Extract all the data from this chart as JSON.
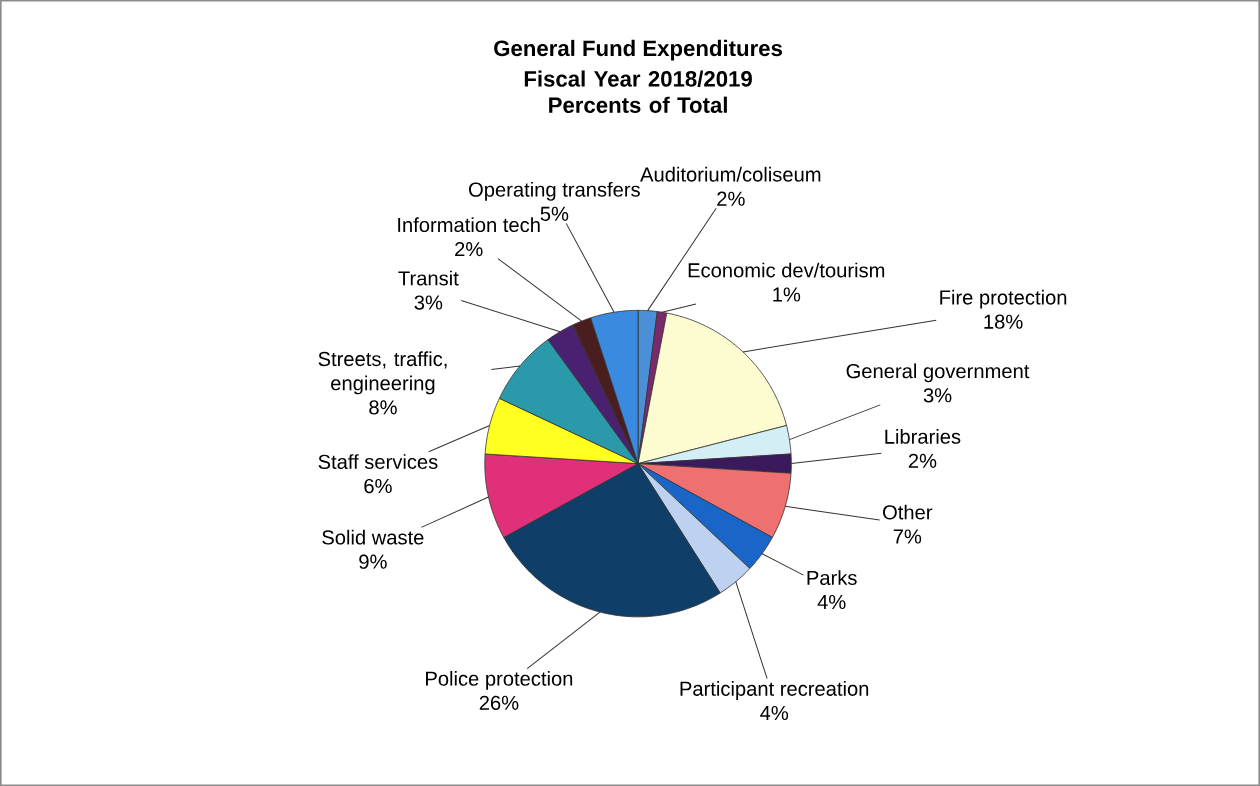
{
  "chart_data": {
    "type": "pie",
    "title": "General Fund Expenditures",
    "subtitle": "Fiscal Year 2018/2019 Percents of Total",
    "categories": [
      "Auditorium/coliseum",
      "Economic dev/tourism",
      "Fire protection",
      "General government",
      "Libraries",
      "Other",
      "Parks",
      "Participant recreation",
      "Police protection",
      "Solid waste",
      "Staff services",
      "Streets, traffic, engineering",
      "Transit",
      "Information tech",
      "Operating transfers"
    ],
    "values": [
      2,
      1,
      18,
      3,
      2,
      7,
      4,
      4,
      26,
      9,
      6,
      8,
      3,
      2,
      5
    ],
    "value_labels": [
      "2%",
      "1%",
      "18%",
      "3%",
      "2%",
      "7%",
      "4%",
      "4%",
      "26%",
      "9%",
      "6%",
      "8%",
      "3%",
      "2%",
      "5%"
    ],
    "colors": [
      "#4a8fd8",
      "#7a2a6a",
      "#fdfbd0",
      "#d4eef5",
      "#3a1a5c",
      "#ee7070",
      "#1a66c8",
      "#bcd2f0",
      "#0f3f68",
      "#e0307a",
      "#ffff20",
      "#2a9aaa",
      "#4a2070",
      "#4a1e1e",
      "#3a8ae0"
    ]
  }
}
